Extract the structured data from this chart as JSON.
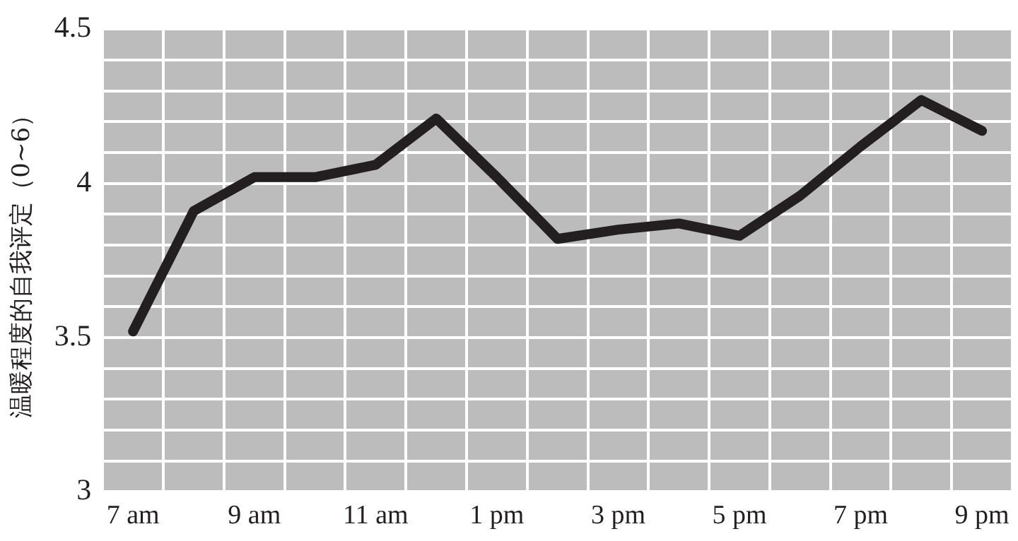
{
  "chart_data": {
    "type": "line",
    "ylabel": "温暖程度的自我评定（0~6）",
    "categories": [
      "7 am",
      null,
      "9 am",
      null,
      "11 am",
      null,
      "1 pm",
      null,
      "3 pm",
      null,
      "5 pm",
      null,
      "7 pm",
      null,
      "9 pm"
    ],
    "series": [
      {
        "color": "#231f20",
        "values": [
          3.52,
          3.91,
          4.02,
          4.02,
          4.06,
          4.21,
          4.02,
          3.82,
          3.85,
          3.87,
          3.83,
          3.96,
          4.12,
          4.27,
          4.17
        ]
      }
    ],
    "ylim": [
      3,
      4.5
    ],
    "yticks": [
      3,
      {
        "value": 3.1,
        "label": null
      },
      {
        "value": 3.2,
        "label": null
      },
      {
        "value": 3.3,
        "label": null
      },
      {
        "value": 3.4,
        "label": null
      },
      3.5,
      {
        "value": 3.6,
        "label": null
      },
      {
        "value": 3.7,
        "label": null
      },
      {
        "value": 3.8,
        "label": null
      },
      {
        "value": 3.9,
        "label": null
      },
      4,
      {
        "value": 4.1,
        "label": null
      },
      {
        "value": 4.2,
        "label": null
      },
      {
        "value": 4.3,
        "label": null
      },
      {
        "value": 4.4,
        "label": null
      },
      4.5
    ],
    "grid": true,
    "legend": false,
    "marker": "none",
    "line_style": "solid"
  }
}
